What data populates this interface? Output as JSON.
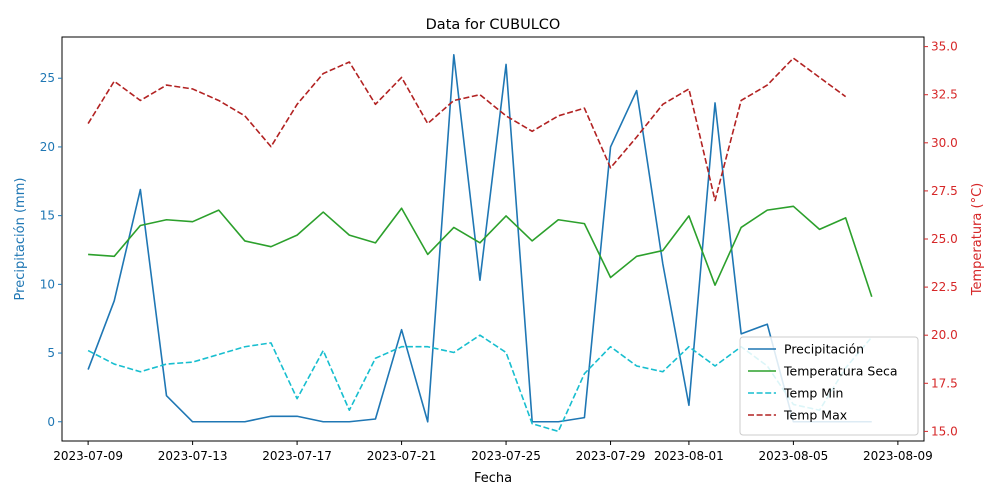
{
  "chart_data": {
    "type": "line",
    "title": "Data for CUBULCO",
    "xlabel": "Fecha",
    "ylabel_left": "Precipitación (mm)",
    "ylabel_right": "Temperatura (°C)",
    "x_start": "2023-07-09",
    "x_range": [
      "2023-07-08",
      "2023-08-10"
    ],
    "ylim_left": [
      -1.4,
      28.0
    ],
    "ylim_right": [
      14.5,
      35.5
    ],
    "x_ticks": [
      "2023-07-09",
      "2023-07-13",
      "2023-07-17",
      "2023-07-21",
      "2023-07-25",
      "2023-07-29",
      "2023-08-01",
      "2023-08-05",
      "2023-08-09"
    ],
    "y_ticks_left": [
      "0",
      "5",
      "10",
      "15",
      "20",
      "25"
    ],
    "y_ticks_right": [
      "15.0",
      "17.5",
      "20.0",
      "22.5",
      "25.0",
      "27.5",
      "30.0",
      "32.5",
      "35.0"
    ],
    "colors": {
      "left_axis": "#1f77b4",
      "right_axis": "#d62728"
    },
    "legend_position": "lower right",
    "x": [
      "2023-07-09",
      "2023-07-10",
      "2023-07-11",
      "2023-07-12",
      "2023-07-13",
      "2023-07-14",
      "2023-07-15",
      "2023-07-16",
      "2023-07-17",
      "2023-07-18",
      "2023-07-19",
      "2023-07-20",
      "2023-07-21",
      "2023-07-22",
      "2023-07-23",
      "2023-07-24",
      "2023-07-25",
      "2023-07-26",
      "2023-07-27",
      "2023-07-28",
      "2023-07-29",
      "2023-07-30",
      "2023-07-31",
      "2023-08-01",
      "2023-08-02",
      "2023-08-03",
      "2023-08-04",
      "2023-08-05",
      "2023-08-06",
      "2023-08-07",
      "2023-08-08"
    ],
    "series": [
      {
        "name": "Precipitación",
        "axis": "left",
        "color": "#1f77b4",
        "dash": "solid",
        "values": [
          3.8,
          8.8,
          16.9,
          1.9,
          0,
          0,
          0,
          0.4,
          0.4,
          0,
          0,
          0.2,
          6.7,
          0,
          26.7,
          10.3,
          26.0,
          0,
          0,
          0.3,
          20.0,
          24.1,
          11.5,
          1.2,
          23.2,
          6.4,
          7.1,
          0,
          0,
          0,
          0
        ]
      },
      {
        "name": "Temperatura Seca",
        "axis": "right",
        "color": "#2ca02c",
        "dash": "solid",
        "values": [
          24.2,
          24.1,
          25.7,
          26.0,
          25.9,
          26.5,
          24.9,
          24.6,
          25.2,
          26.4,
          25.2,
          24.8,
          26.6,
          24.2,
          25.6,
          24.8,
          26.2,
          24.9,
          26.0,
          25.8,
          23.0,
          24.1,
          24.4,
          26.2,
          22.6,
          25.6,
          26.5,
          26.7,
          25.5,
          26.1,
          22.0
        ]
      },
      {
        "name": "Temp Min",
        "axis": "right",
        "color": "#17becf",
        "dash": "dashed",
        "values": [
          19.2,
          18.5,
          18.1,
          18.5,
          18.6,
          19.0,
          19.4,
          19.6,
          16.7,
          19.2,
          16.1,
          18.8,
          19.4,
          19.4,
          19.1,
          20.0,
          19.1,
          15.4,
          15.0,
          18.0,
          19.4,
          18.4,
          18.1,
          19.4,
          18.4,
          19.4,
          18.4,
          16.4,
          16.1,
          18.3,
          19.9
        ]
      },
      {
        "name": "Temp Max",
        "axis": "right",
        "color": "#b22222",
        "dash": "dashed",
        "values": [
          31.0,
          33.2,
          32.2,
          33.0,
          32.8,
          32.2,
          31.4,
          29.8,
          32.0,
          33.6,
          34.2,
          32.0,
          33.4,
          31.0,
          32.2,
          32.5,
          31.4,
          30.6,
          31.4,
          31.8,
          28.7,
          30.3,
          32.0,
          32.8,
          27.0,
          32.2,
          33.0,
          34.4,
          33.4,
          32.4,
          null
        ]
      }
    ]
  }
}
